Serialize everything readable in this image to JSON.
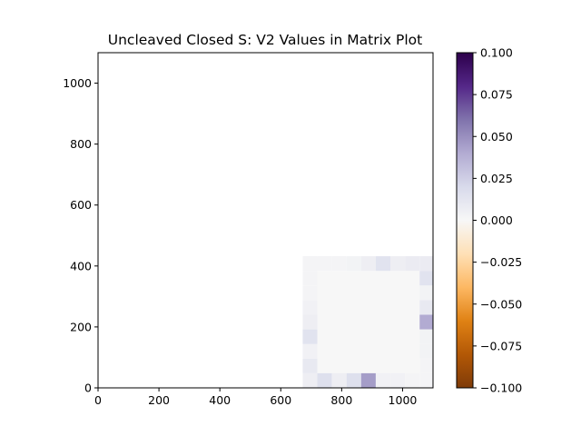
{
  "chart_data": {
    "type": "heatmap",
    "title": "Uncleaved Closed S: V2 Values in Matrix Plot",
    "xlabel": "",
    "ylabel": "",
    "xlim": [
      0,
      1100
    ],
    "ylim": [
      0,
      1100
    ],
    "x_ticks": [
      "0",
      "200",
      "400",
      "600",
      "800",
      "1000"
    ],
    "y_ticks": [
      "0",
      "200",
      "400",
      "600",
      "800",
      "1000"
    ],
    "grid": false,
    "colormap": "PuOr",
    "colorbar": {
      "vmin": -0.1,
      "vmax": 0.1,
      "ticks": [
        "−0.100",
        "−0.075",
        "−0.050",
        "−0.025",
        "0.000",
        "0.025",
        "0.050",
        "0.075",
        "0.100"
      ]
    },
    "cell_size": 48,
    "inner_region": {
      "x0": 720,
      "x1": 1056,
      "y0": 48,
      "y1": 384,
      "value": 0.0
    },
    "cells": [
      {
        "x": 672,
        "y": 0,
        "value": 0.006
      },
      {
        "x": 720,
        "y": 0,
        "value": 0.016
      },
      {
        "x": 768,
        "y": 0,
        "value": 0.006
      },
      {
        "x": 816,
        "y": 0,
        "value": 0.016
      },
      {
        "x": 864,
        "y": 0,
        "value": 0.045
      },
      {
        "x": 912,
        "y": 0,
        "value": 0.004
      },
      {
        "x": 960,
        "y": 0,
        "value": 0.004
      },
      {
        "x": 1008,
        "y": 0,
        "value": 0.002
      },
      {
        "x": 1056,
        "y": 0,
        "value": 0.002
      },
      {
        "x": 672,
        "y": 48,
        "value": 0.01
      },
      {
        "x": 672,
        "y": 96,
        "value": 0.004
      },
      {
        "x": 672,
        "y": 144,
        "value": 0.014
      },
      {
        "x": 672,
        "y": 192,
        "value": 0.006
      },
      {
        "x": 672,
        "y": 240,
        "value": 0.004
      },
      {
        "x": 672,
        "y": 288,
        "value": 0.002
      },
      {
        "x": 672,
        "y": 336,
        "value": 0.002
      },
      {
        "x": 672,
        "y": 384,
        "value": 0.002
      },
      {
        "x": 720,
        "y": 384,
        "value": 0.002
      },
      {
        "x": 768,
        "y": 384,
        "value": 0.002
      },
      {
        "x": 816,
        "y": 384,
        "value": 0.003
      },
      {
        "x": 864,
        "y": 384,
        "value": 0.006
      },
      {
        "x": 912,
        "y": 384,
        "value": 0.014
      },
      {
        "x": 960,
        "y": 384,
        "value": 0.006
      },
      {
        "x": 1008,
        "y": 384,
        "value": 0.008
      },
      {
        "x": 1056,
        "y": 384,
        "value": 0.008
      },
      {
        "x": 1056,
        "y": 48,
        "value": 0.002
      },
      {
        "x": 1056,
        "y": 96,
        "value": 0.003
      },
      {
        "x": 1056,
        "y": 144,
        "value": 0.003
      },
      {
        "x": 1056,
        "y": 192,
        "value": 0.04
      },
      {
        "x": 1056,
        "y": 240,
        "value": 0.01
      },
      {
        "x": 1056,
        "y": 288,
        "value": 0.003
      },
      {
        "x": 1056,
        "y": 336,
        "value": 0.014
      }
    ]
  }
}
